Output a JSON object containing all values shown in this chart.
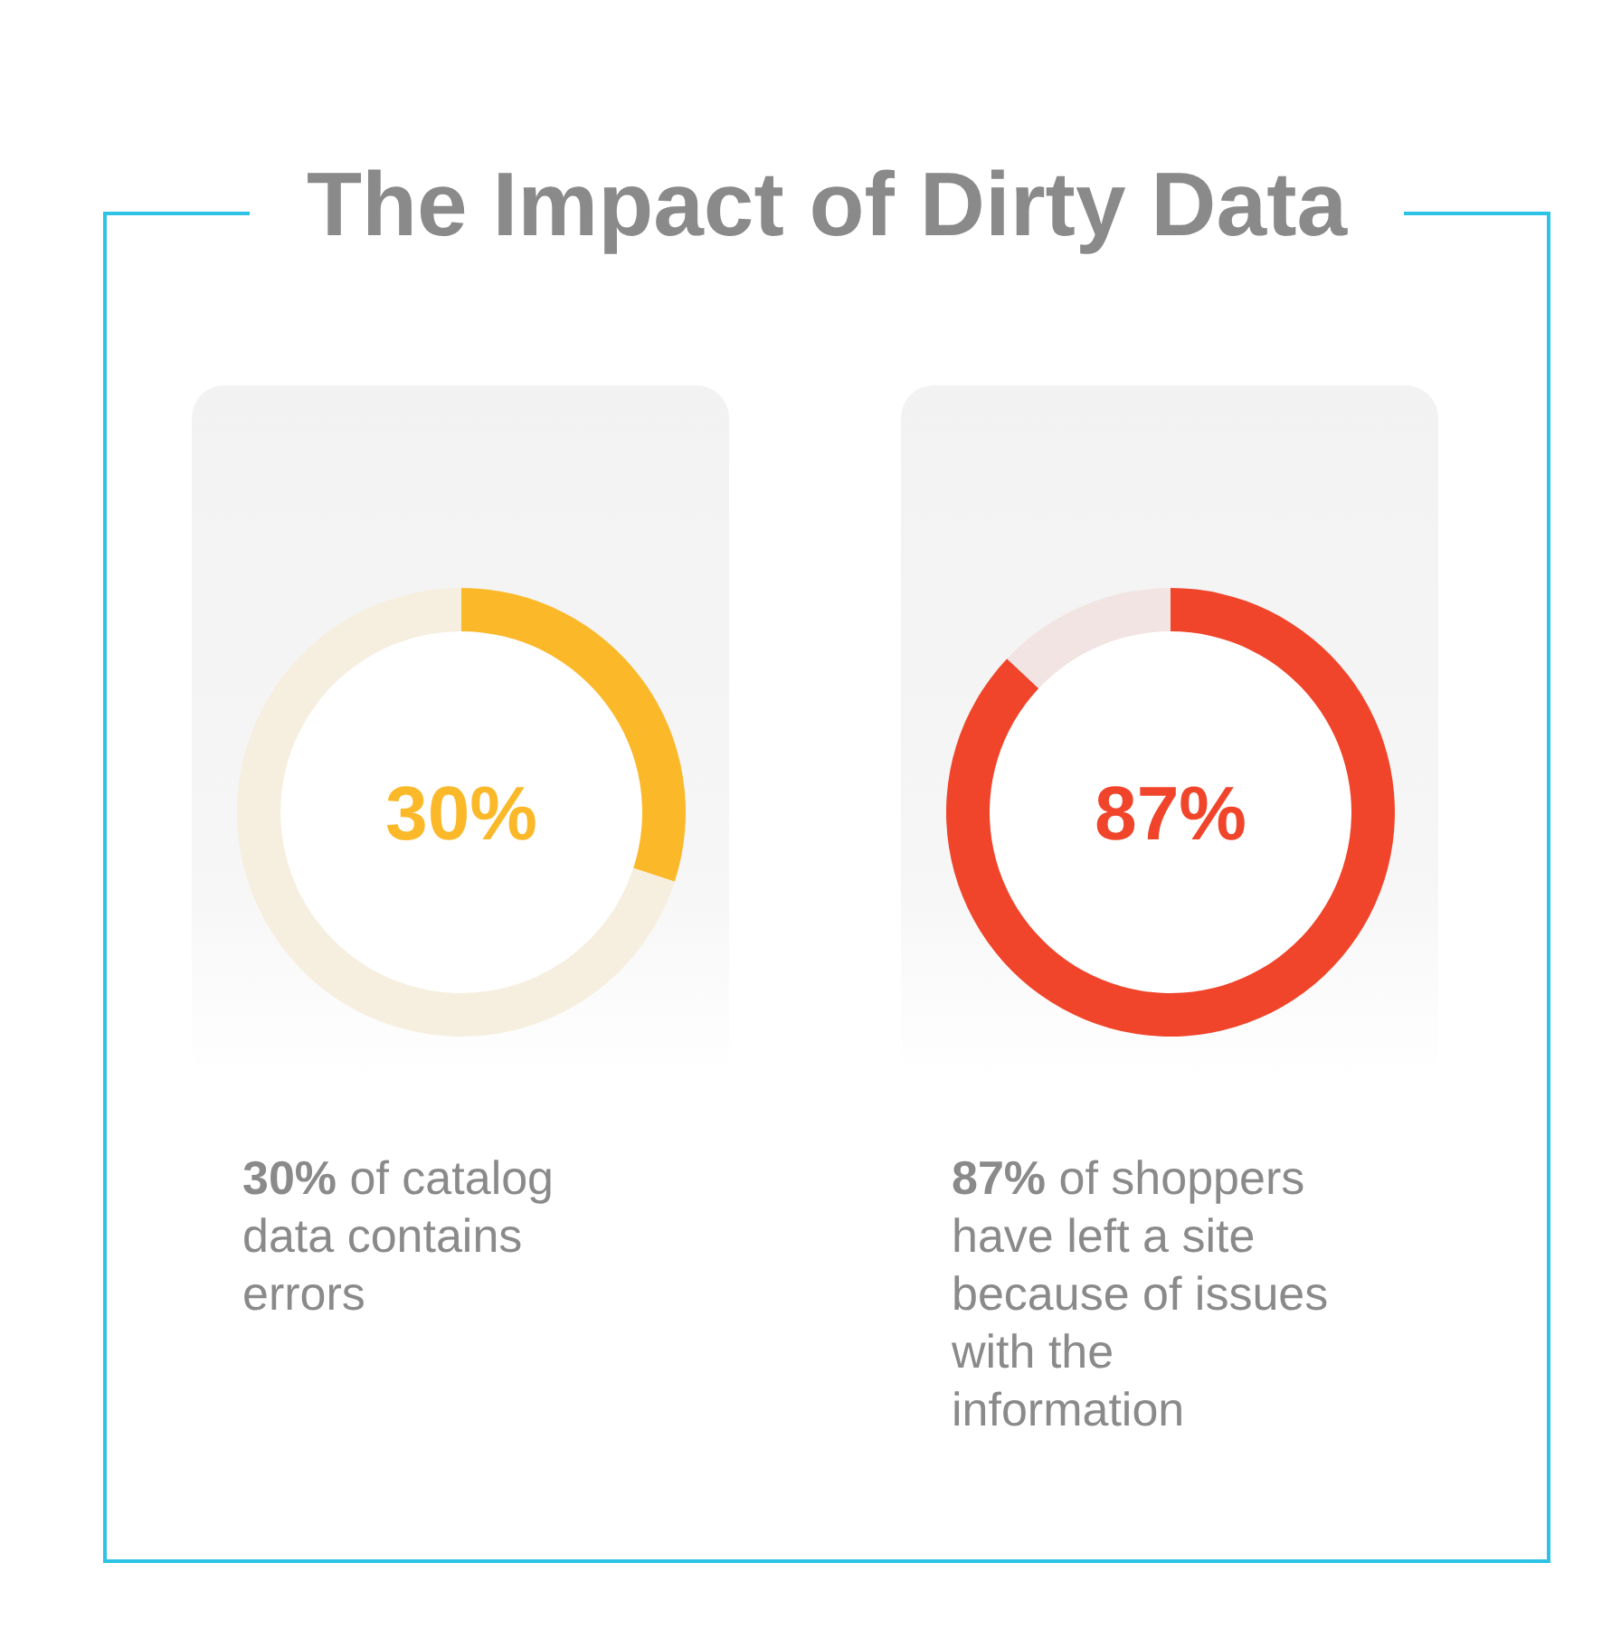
{
  "chart_data": [
    {
      "type": "donut",
      "title": "The Impact of Dirty Data",
      "categories": [
        null,
        null
      ],
      "values": [
        30,
        70
      ],
      "colors": [
        "#fbb92a",
        "#f6efdf"
      ],
      "annotations": [
        "30%",
        "30% of catalog data contains errors"
      ],
      "legend": false
    },
    {
      "type": "donut",
      "categories": [
        null,
        null
      ],
      "values": [
        87,
        13
      ],
      "colors": [
        "#f0452b",
        "#f2e4e2"
      ],
      "annotations": [
        "87%",
        "87% of shoppers have left a site because of issues with the information"
      ],
      "legend": false
    }
  ]
}
